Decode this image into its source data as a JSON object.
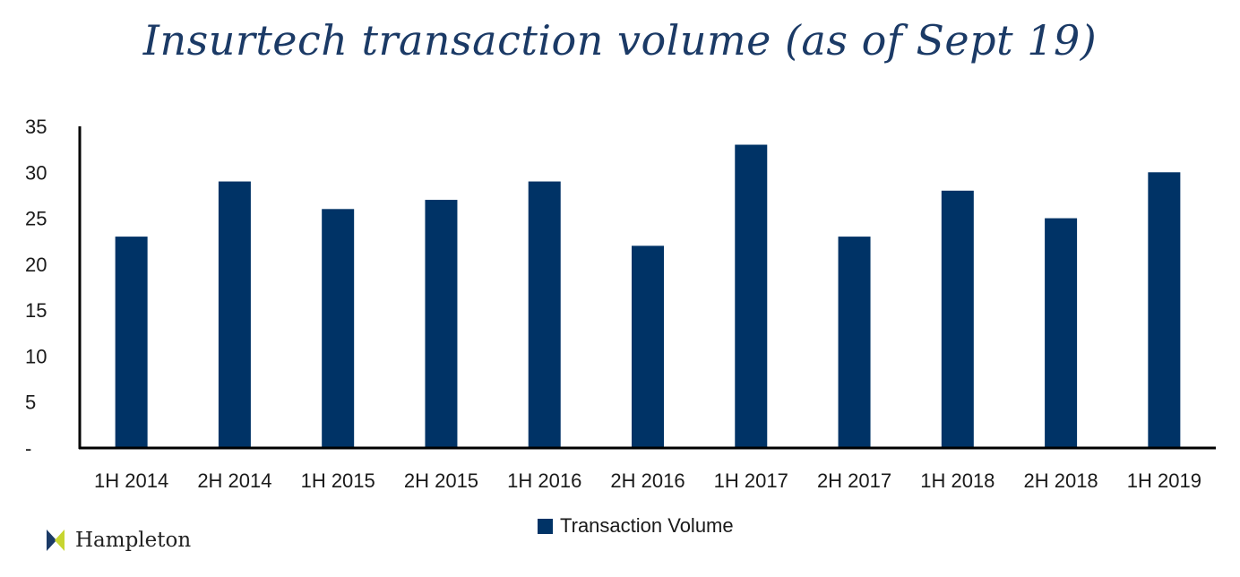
{
  "chart_data": {
    "type": "bar",
    "title": "Insurtech transaction volume (as of Sept 19)",
    "categories": [
      "1H 2014",
      "2H 2014",
      "1H 2015",
      "2H 2015",
      "1H 2016",
      "2H 2016",
      "1H 2017",
      "2H 2017",
      "1H 2018",
      "2H 2018",
      "1H 2019"
    ],
    "series": [
      {
        "name": "Transaction Volume",
        "values": [
          23,
          29,
          26,
          27,
          29,
          22,
          33,
          23,
          28,
          25,
          30
        ],
        "color": "#003366"
      }
    ],
    "ylim": [
      0,
      35
    ],
    "yticks": [
      0,
      5,
      10,
      15,
      20,
      25,
      30,
      35
    ],
    "ytick_labels": [
      "-",
      "5",
      "10",
      "15",
      "20",
      "25",
      "30",
      "35"
    ],
    "xlabel": "",
    "ylabel": "",
    "grid": false,
    "legend_position": "bottom-center"
  },
  "branding": {
    "logo_text": "Hampleton",
    "logo_colors": [
      "#1b3a66",
      "#c7d530"
    ]
  }
}
